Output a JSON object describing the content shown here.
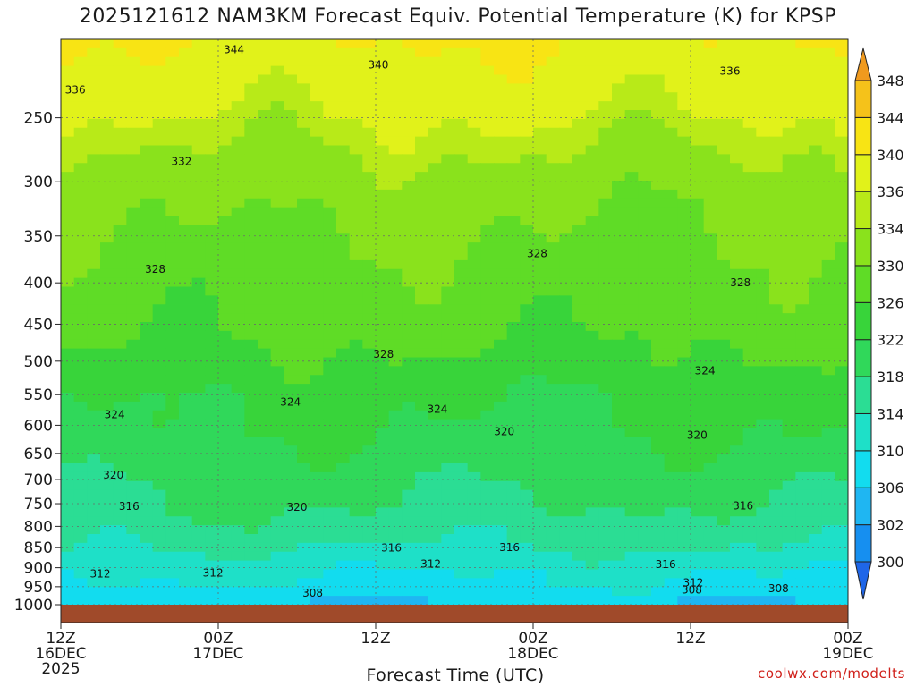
{
  "chart_data": {
    "type": "heatmap",
    "title": "2025121612 NAM3KM Forecast Equiv. Potential Temperature (K) for KPSP",
    "xlabel": "Forecast Time (UTC)",
    "ylabel": "",
    "x_ticks": [
      {
        "hours": 0,
        "line1": "12Z",
        "line2": "16DEC",
        "line3": "2025"
      },
      {
        "hours": 12,
        "line1": "00Z",
        "line2": "17DEC",
        "line3": ""
      },
      {
        "hours": 24,
        "line1": "12Z",
        "line2": "",
        "line3": ""
      },
      {
        "hours": 36,
        "line1": "00Z",
        "line2": "18DEC",
        "line3": ""
      },
      {
        "hours": 48,
        "line1": "12Z",
        "line2": "",
        "line3": ""
      },
      {
        "hours": 60,
        "line1": "00Z",
        "line2": "19DEC",
        "line3": ""
      }
    ],
    "xlim_hours": [
      0,
      60
    ],
    "y_ticks": [
      250,
      300,
      350,
      400,
      450,
      500,
      550,
      600,
      650,
      700,
      750,
      800,
      850,
      900,
      950,
      1000
    ],
    "y_axis": "pressure (hPa), log scale, inverted",
    "ylim": [
      1000,
      200
    ],
    "grid": true,
    "ground_color": "#a04a2a",
    "colorbar": {
      "levels": [
        300,
        302,
        306,
        310,
        314,
        318,
        322,
        326,
        330,
        334,
        336,
        340,
        344,
        348
      ],
      "labels": [
        "300",
        "302",
        "306",
        "310",
        "314",
        "318",
        "322",
        "326",
        "330",
        "334",
        "336",
        "340",
        "344",
        "348"
      ],
      "colors": [
        "#1f66e8",
        "#168ff0",
        "#1fb6f2",
        "#12dcef",
        "#1ee0c8",
        "#2bdd94",
        "#30d85a",
        "#38d43a",
        "#5fdc26",
        "#8ae21c",
        "#b8ea18",
        "#e1f21a",
        "#f8e414",
        "#f5c21a",
        "#f09a1e"
      ]
    },
    "profiles": [
      {
        "level": 250,
        "value": 336
      },
      {
        "level": 300,
        "value": 332
      },
      {
        "level": 350,
        "value": 330
      },
      {
        "level": 400,
        "value": 328
      },
      {
        "level": 450,
        "value": 327
      },
      {
        "level": 500,
        "value": 325
      },
      {
        "level": 550,
        "value": 323
      },
      {
        "level": 600,
        "value": 322
      },
      {
        "level": 650,
        "value": 321
      },
      {
        "level": 700,
        "value": 319
      },
      {
        "level": 750,
        "value": 318
      },
      {
        "level": 800,
        "value": 316
      },
      {
        "level": 850,
        "value": 314
      },
      {
        "level": 900,
        "value": 311
      },
      {
        "level": 950,
        "value": 309
      },
      {
        "level": 1000,
        "value": 306
      }
    ],
    "contour_labels": [
      {
        "text": "344",
        "hours": 13.2,
        "level": 206
      },
      {
        "text": "340",
        "hours": 24.2,
        "level": 215
      },
      {
        "text": "336",
        "hours": 1.1,
        "level": 231
      },
      {
        "text": "336",
        "hours": 51.0,
        "level": 219
      },
      {
        "text": "332",
        "hours": 9.2,
        "level": 283
      },
      {
        "text": "328",
        "hours": 7.2,
        "level": 385
      },
      {
        "text": "328",
        "hours": 36.3,
        "level": 368
      },
      {
        "text": "328",
        "hours": 51.8,
        "level": 400
      },
      {
        "text": "328",
        "hours": 24.6,
        "level": 490
      },
      {
        "text": "324",
        "hours": 4.1,
        "level": 582
      },
      {
        "text": "324",
        "hours": 17.5,
        "level": 562
      },
      {
        "text": "324",
        "hours": 28.7,
        "level": 573
      },
      {
        "text": "324",
        "hours": 49.1,
        "level": 514
      },
      {
        "text": "320",
        "hours": 4.0,
        "level": 691
      },
      {
        "text": "320",
        "hours": 33.8,
        "level": 611
      },
      {
        "text": "320",
        "hours": 48.5,
        "level": 617
      },
      {
        "text": "320",
        "hours": 18.0,
        "level": 758
      },
      {
        "text": "316",
        "hours": 5.2,
        "level": 756
      },
      {
        "text": "316",
        "hours": 52.0,
        "level": 755
      },
      {
        "text": "316",
        "hours": 25.2,
        "level": 851
      },
      {
        "text": "316",
        "hours": 34.2,
        "level": 850
      },
      {
        "text": "316",
        "hours": 46.1,
        "level": 892
      },
      {
        "text": "312",
        "hours": 3.0,
        "level": 916
      },
      {
        "text": "312",
        "hours": 11.6,
        "level": 913
      },
      {
        "text": "312",
        "hours": 28.2,
        "level": 891
      },
      {
        "text": "312",
        "hours": 48.2,
        "level": 940
      },
      {
        "text": "308",
        "hours": 19.2,
        "level": 968
      },
      {
        "text": "308",
        "hours": 48.1,
        "level": 959
      },
      {
        "text": "308",
        "hours": 54.7,
        "level": 955
      }
    ]
  },
  "credit": "coolwx.com/modelts"
}
